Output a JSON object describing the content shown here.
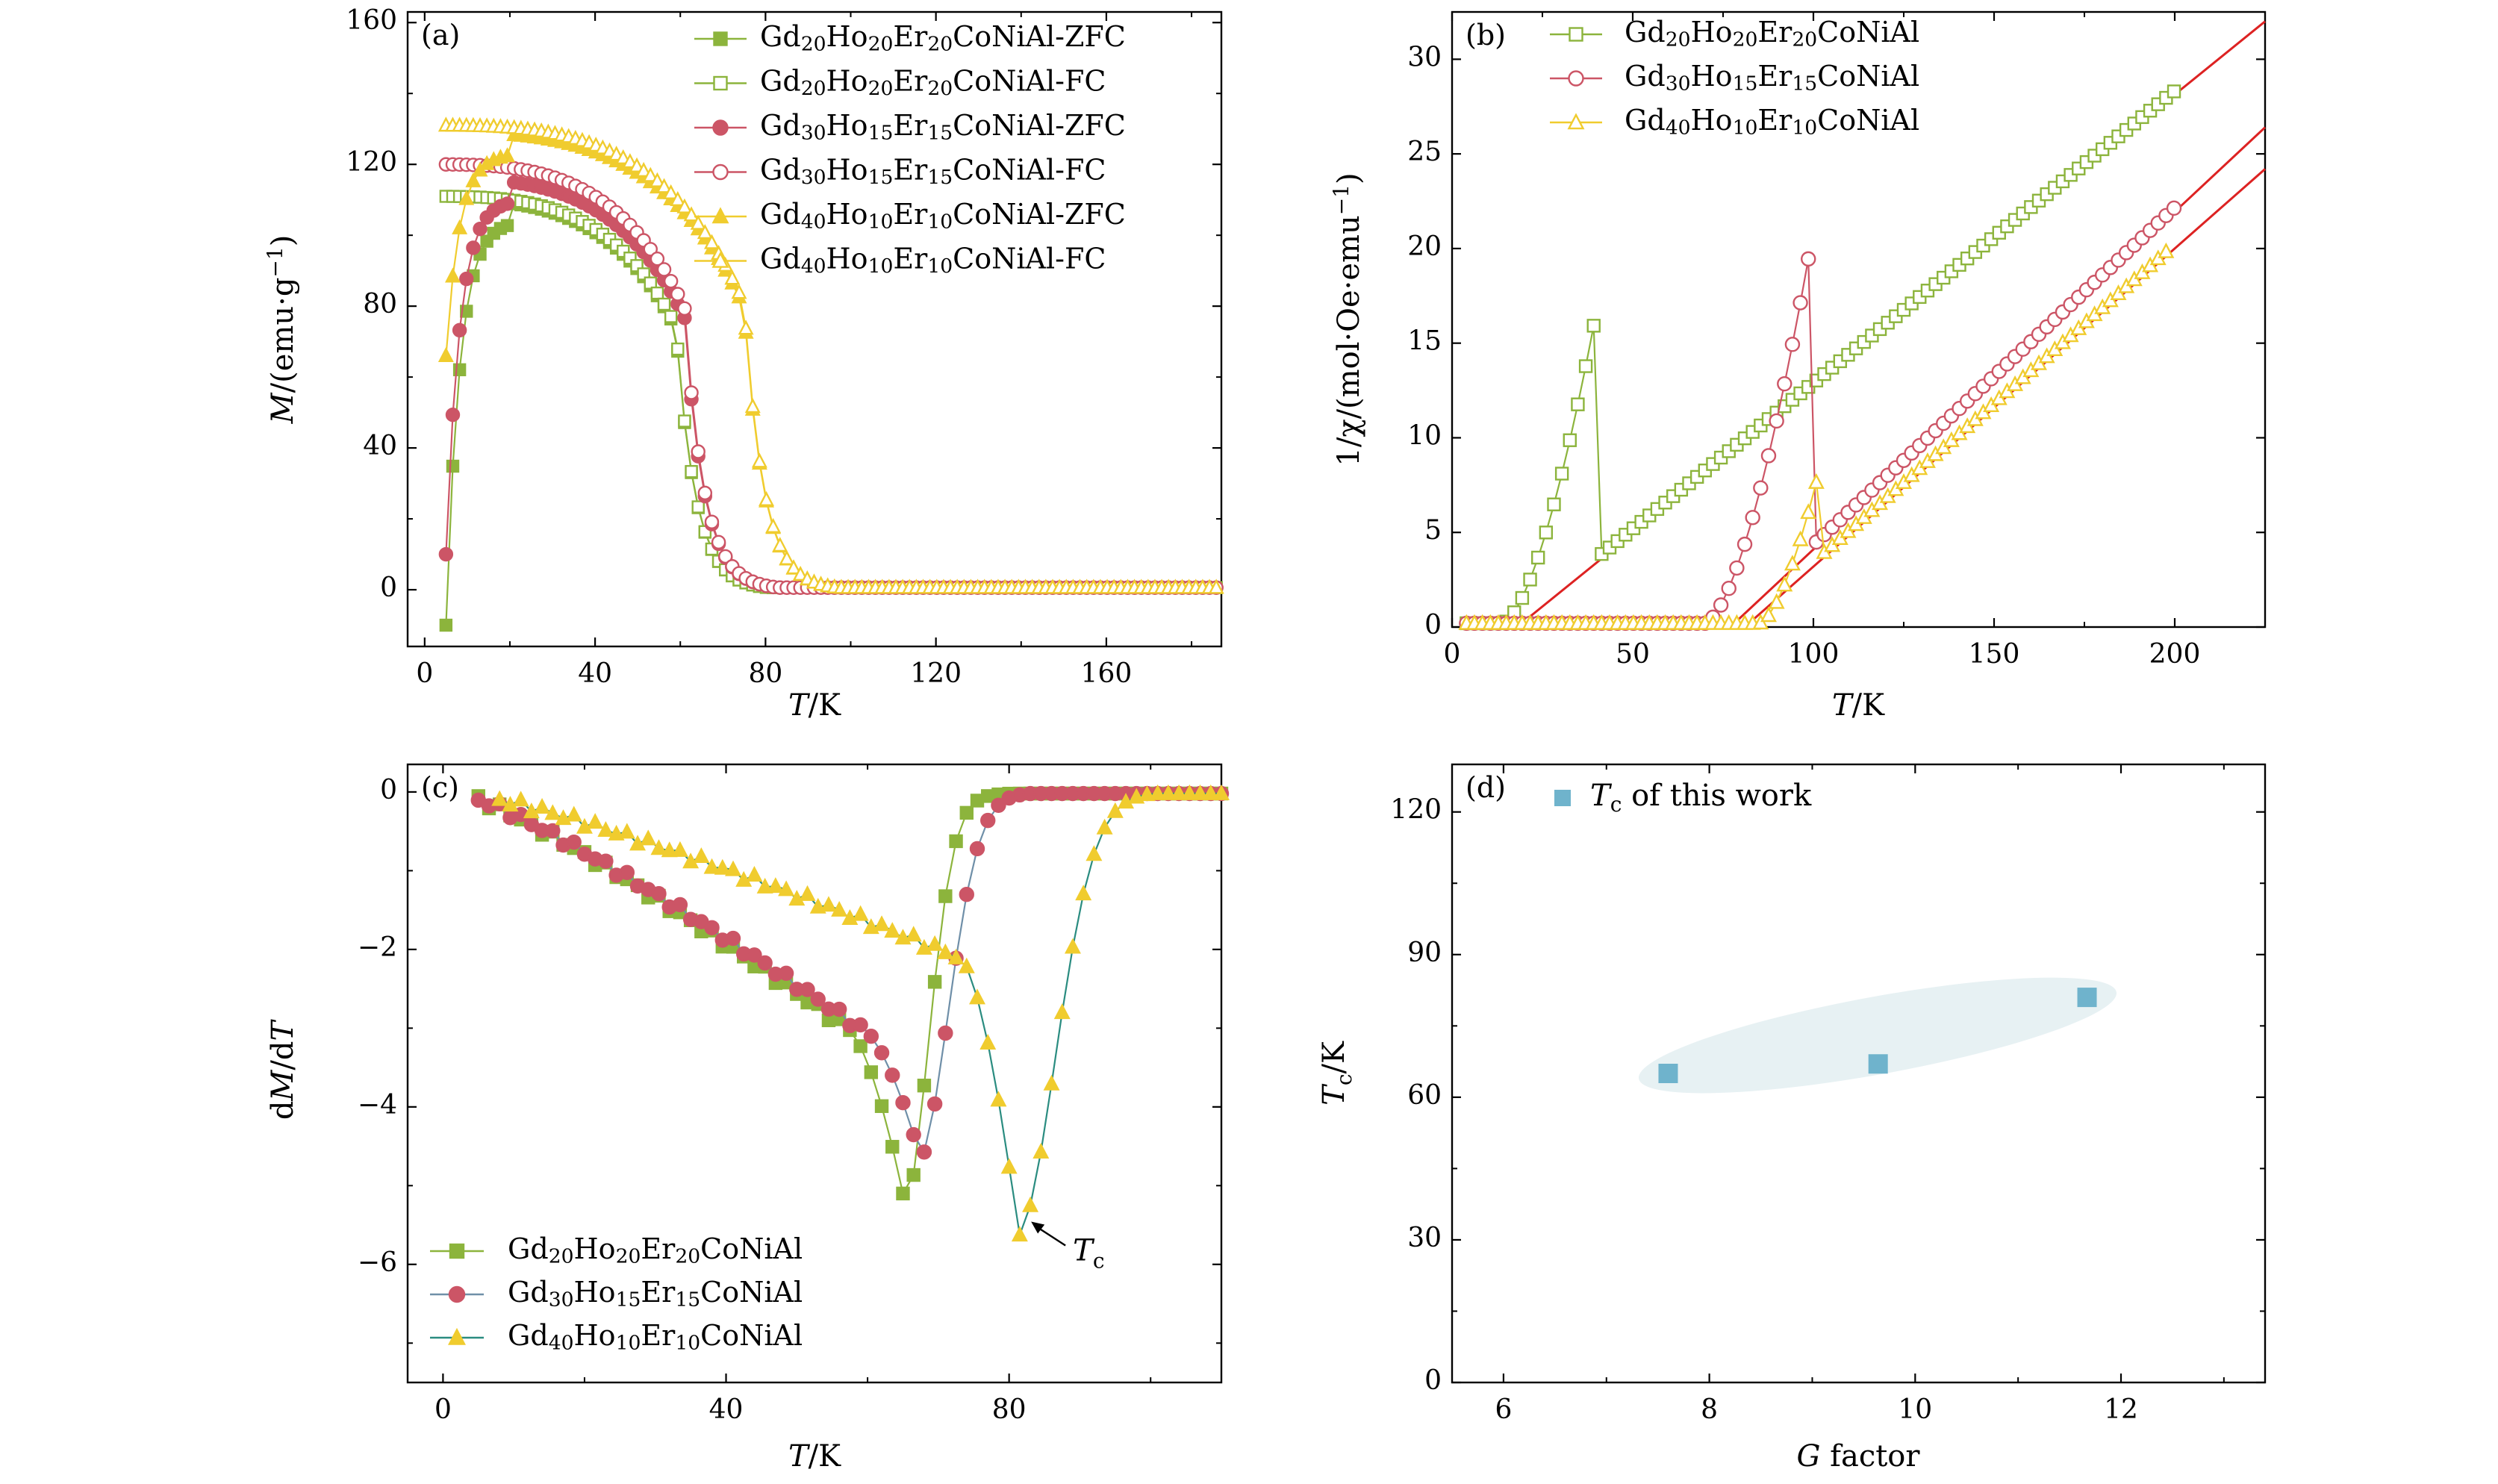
{
  "figure": {
    "colors": {
      "green": "#8cb43c",
      "red": "#cc5566",
      "yellow": "#f0cc2e",
      "fit": "#dd2222",
      "blue": "#6fb3cc",
      "ellipse": "#e7f1f3",
      "line_yellow": "#2a8c80",
      "line_red": "#6f8fa8"
    }
  },
  "chart_data": [
    {
      "panel": "a",
      "type": "line",
      "panel_label": "(a)",
      "xlabel_italic": "T",
      "xlabel_rest": "/K",
      "ylabel_italic": "M",
      "ylabel_rest": "/(emu·g",
      "ylabel_sup": "−1",
      "ylabel_close": ")",
      "xlim": [
        -4,
        187
      ],
      "ylim": [
        -16,
        163
      ],
      "xticks": [
        0,
        40,
        80,
        120,
        160
      ],
      "xtick_labels": [
        "0",
        "40",
        "80",
        "120",
        "160"
      ],
      "yticks": [
        0,
        40,
        80,
        120,
        160
      ],
      "ytick_labels": [
        "0",
        "40",
        "80",
        "120",
        "160"
      ],
      "legend_position": "top-right",
      "series": [
        {
          "name_parts": [
            "Gd",
            "20",
            "Ho",
            "20",
            "Er",
            "20",
            "CoNiAl-ZFC"
          ],
          "color": "#8cb43c",
          "marker": "square",
          "filled": true,
          "tc": 65,
          "peak": 104,
          "start": -10
        },
        {
          "name_parts": [
            "Gd",
            "20",
            "Ho",
            "20",
            "Er",
            "20",
            "CoNiAl-FC"
          ],
          "color": "#8cb43c",
          "marker": "square",
          "filled": false,
          "tc": 65,
          "peak": 104,
          "m0": 111
        },
        {
          "name_parts": [
            "Gd",
            "30",
            "Ho",
            "15",
            "Er",
            "15",
            "CoNiAl-ZFC"
          ],
          "color": "#cc5566",
          "marker": "circle",
          "filled": true,
          "tc": 67,
          "peak": 110,
          "start": 10
        },
        {
          "name_parts": [
            "Gd",
            "30",
            "Ho",
            "15",
            "Er",
            "15",
            "CoNiAl-FC"
          ],
          "color": "#cc5566",
          "marker": "circle",
          "filled": false,
          "tc": 67,
          "peak": 110,
          "m0": 120
        },
        {
          "name_parts": [
            "Gd",
            "40",
            "Ho",
            "10",
            "Er",
            "10",
            "CoNiAl-ZFC"
          ],
          "color": "#f0cc2e",
          "marker": "triangle",
          "filled": true,
          "tc": 81,
          "peak": 123,
          "start": 66
        },
        {
          "name_parts": [
            "Gd",
            "40",
            "Ho",
            "10",
            "Er",
            "10",
            "CoNiAl-FC"
          ],
          "color": "#f0cc2e",
          "marker": "triangle",
          "filled": false,
          "tc": 81,
          "peak": 123,
          "m0": 131
        }
      ]
    },
    {
      "panel": "b",
      "type": "line",
      "panel_label": "(b)",
      "xlabel_italic": "T",
      "xlabel_rest": "/K",
      "ylabel_text": "1/χ/(mol·Oe·emu",
      "ylabel_sup": "−1",
      "ylabel_close": ")",
      "xlim": [
        0,
        225
      ],
      "ylim": [
        0,
        32.5
      ],
      "xticks": [
        0,
        50,
        100,
        150,
        200
      ],
      "xtick_labels": [
        "0",
        "50",
        "100",
        "150",
        "200"
      ],
      "yticks": [
        0,
        5,
        10,
        15,
        20,
        25,
        30
      ],
      "ytick_labels": [
        "0",
        "5",
        "10",
        "15",
        "20",
        "25",
        "30"
      ],
      "legend_position": "top-left",
      "series": [
        {
          "name_parts": [
            "Gd",
            "20",
            "Ho",
            "20",
            "Er",
            "20",
            "CoNiAl"
          ],
          "color": "#8cb43c",
          "marker": "square",
          "theta": 18,
          "slope": 0.1543,
          "onset": 14,
          "end": 200
        },
        {
          "name_parts": [
            "Gd",
            "30",
            "Ho",
            "15",
            "Er",
            "15",
            "CoNiAl"
          ],
          "color": "#cc5566",
          "marker": "circle",
          "theta": 77,
          "slope": 0.1782,
          "onset": 70,
          "end": 200
        },
        {
          "name_parts": [
            "Gd",
            "40",
            "Ho",
            "10",
            "Er",
            "10",
            "CoNiAl"
          ],
          "color": "#f0cc2e",
          "marker": "triangle",
          "theta": 81,
          "slope": 0.168,
          "onset": 85,
          "end": 198
        }
      ],
      "fit_lines": [
        {
          "color": "#dd2222",
          "x": [
            18,
            225
          ],
          "y": [
            0,
            32
          ]
        },
        {
          "color": "#dd2222",
          "x": [
            77,
            225
          ],
          "y": [
            0,
            26.4
          ]
        },
        {
          "color": "#dd2222",
          "x": [
            81,
            225
          ],
          "y": [
            0,
            24.2
          ]
        }
      ]
    },
    {
      "panel": "c",
      "type": "line",
      "panel_label": "(c)",
      "xlabel_italic": "T",
      "xlabel_rest": "/K",
      "ylabel_text": "d",
      "ylabel_italic": "M",
      "ylabel_mid": "/d",
      "ylabel_italic2": "T",
      "xlim": [
        -5,
        110
      ],
      "ylim": [
        -7.5,
        0.35
      ],
      "xticks": [
        0,
        40,
        80
      ],
      "xtick_labels": [
        "0",
        "40",
        "80"
      ],
      "yticks": [
        0,
        -2,
        -4,
        -6
      ],
      "ytick_labels": [
        "0",
        "−2",
        "−4",
        "−6"
      ],
      "legend_position": "bottom-left",
      "annotation": {
        "text_italic": "T",
        "text_sub": "c",
        "x": 81,
        "y": -5.4
      },
      "series": [
        {
          "name_parts": [
            "Gd",
            "20",
            "Ho",
            "20",
            "Er",
            "20",
            "CoNiAl"
          ],
          "color": "#8cb43c",
          "line_color": "#8cb43c",
          "marker": "square",
          "start_x": 5,
          "min_x": 65,
          "min_y": -5.1,
          "width_after": 4.5
        },
        {
          "name_parts": [
            "Gd",
            "30",
            "Ho",
            "15",
            "Er",
            "15",
            "CoNiAl"
          ],
          "color": "#cc5566",
          "line_color": "#6f8fa8",
          "marker": "circle",
          "start_x": 5,
          "min_x": 67,
          "min_y": -4.5,
          "width_after": 5.5
        },
        {
          "name_parts": [
            "Gd",
            "40",
            "Ho",
            "10",
            "Er",
            "10",
            "CoNiAl"
          ],
          "color": "#f0cc2e",
          "line_color": "#2a8c80",
          "marker": "triangle",
          "start_x": 8,
          "min_x": 81,
          "min_y": -5.4,
          "width_after": 7
        }
      ]
    },
    {
      "panel": "d",
      "type": "scatter",
      "panel_label": "(d)",
      "xlabel_italic": "G",
      "xlabel_rest": " factor",
      "ylabel_italic": "T",
      "ylabel_sub": "c",
      "ylabel_rest": "/K",
      "xlim": [
        5.5,
        13.4
      ],
      "ylim": [
        0,
        130
      ],
      "xticks": [
        6,
        8,
        10,
        12
      ],
      "xtick_labels": [
        "6",
        "8",
        "10",
        "12"
      ],
      "yticks": [
        0,
        30,
        60,
        90,
        120
      ],
      "ytick_labels": [
        "0",
        "30",
        "60",
        "90",
        "120"
      ],
      "legend_position": "top-left",
      "legend_label_italic": "T",
      "legend_label_sub": "c",
      "legend_label_rest": " of this work",
      "points": [
        {
          "x": 7.6,
          "y": 65
        },
        {
          "x": 9.64,
          "y": 67
        },
        {
          "x": 11.67,
          "y": 81
        }
      ]
    }
  ]
}
